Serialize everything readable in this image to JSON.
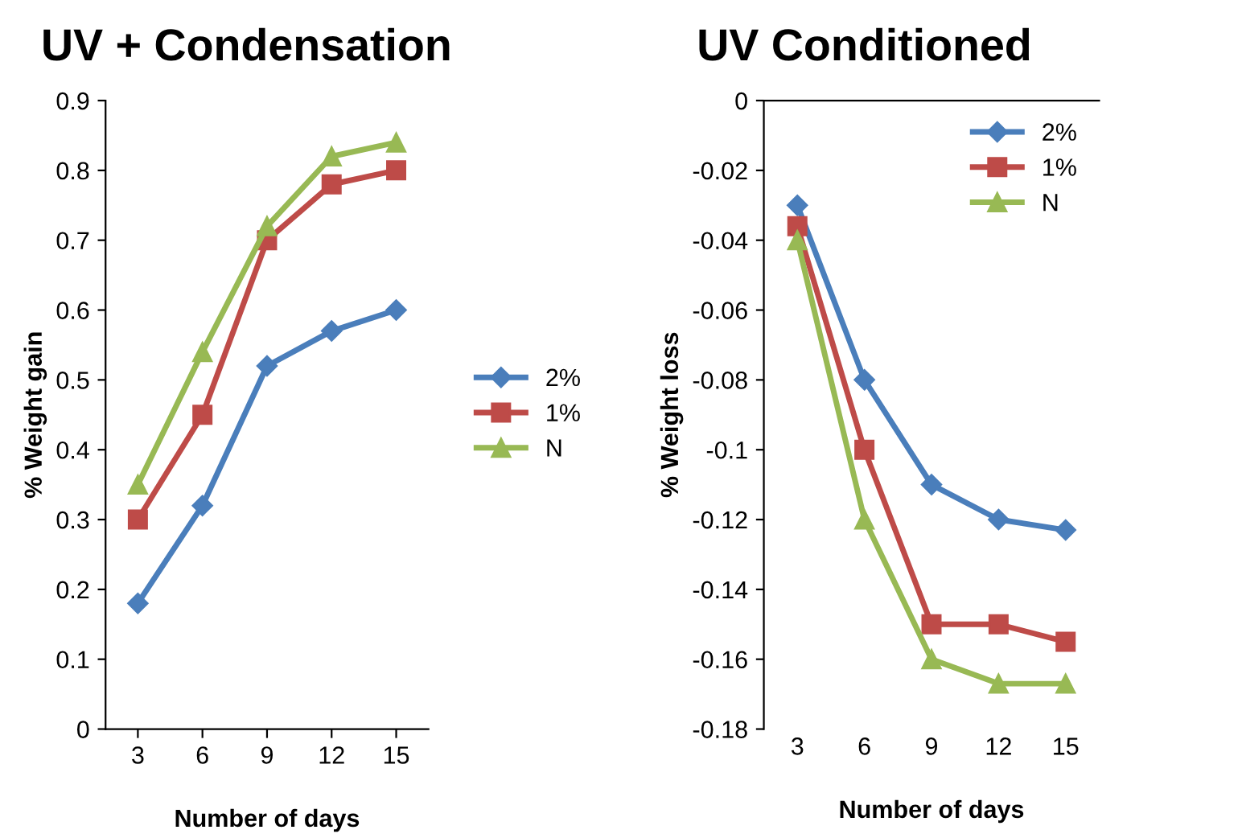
{
  "chart_data": [
    {
      "type": "line",
      "title": "UV + Condensation",
      "xlabel": "Number of days",
      "ylabel": "% Weight gain",
      "categories": [
        "3",
        "6",
        "9",
        "12",
        "15"
      ],
      "ylim": [
        0,
        0.9
      ],
      "yticks": [
        0,
        0.1,
        0.2,
        0.3,
        0.4,
        0.5,
        0.6,
        0.7,
        0.8,
        0.9
      ],
      "grid": false,
      "legend": "right",
      "series": [
        {
          "name": "2%",
          "color": "#4a7ebb",
          "marker": "diamond",
          "values": [
            0.18,
            0.32,
            0.52,
            0.57,
            0.6
          ]
        },
        {
          "name": "1%",
          "color": "#be4b48",
          "marker": "square",
          "values": [
            0.3,
            0.45,
            0.7,
            0.78,
            0.8
          ]
        },
        {
          "name": "N",
          "color": "#98b954",
          "marker": "triangle",
          "values": [
            0.35,
            0.54,
            0.72,
            0.82,
            0.84
          ]
        }
      ]
    },
    {
      "type": "line",
      "title": "UV Conditioned",
      "xlabel": "Number of days",
      "ylabel": "% Weight loss",
      "categories": [
        "3",
        "6",
        "9",
        "12",
        "15"
      ],
      "ylim": [
        -0.18,
        0
      ],
      "yticks": [
        -0.18,
        -0.16,
        -0.14,
        -0.12,
        {
          "value": -0.1,
          "label": "-0.1"
        },
        -0.08,
        -0.06,
        -0.04,
        -0.02,
        0
      ],
      "grid": false,
      "legend": "top right",
      "series": [
        {
          "name": "2%",
          "color": "#4a7ebb",
          "marker": "diamond",
          "values": [
            -0.03,
            -0.08,
            -0.11,
            -0.12,
            -0.123
          ]
        },
        {
          "name": "1%",
          "color": "#be4b48",
          "marker": "square",
          "values": [
            -0.036,
            -0.1,
            -0.15,
            -0.15,
            -0.155
          ]
        },
        {
          "name": "N",
          "color": "#98b954",
          "marker": "triangle",
          "values": [
            -0.04,
            -0.12,
            -0.16,
            -0.167,
            -0.167
          ]
        }
      ]
    }
  ]
}
